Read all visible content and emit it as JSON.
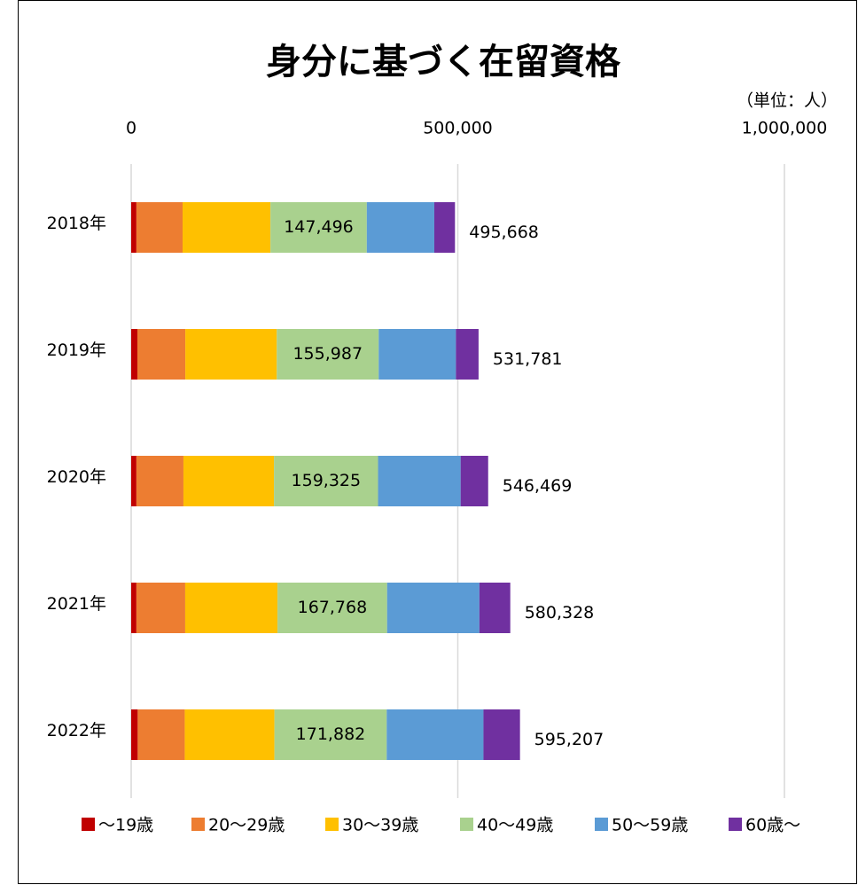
{
  "chart_data": {
    "type": "stacked-barh",
    "title": "身分に基づく在留資格",
    "unit_label": "（単位：人）",
    "categories": [
      "2018年",
      "2019年",
      "2020年",
      "2021年",
      "2022年"
    ],
    "series": [
      {
        "name": "～19歳",
        "color": "#c00000",
        "values": [
          8000,
          9500,
          8000,
          8000,
          10000
        ]
      },
      {
        "name": "20～29歳",
        "color": "#ed7d31",
        "values": [
          70700,
          73400,
          72000,
          74700,
          72000
        ]
      },
      {
        "name": "30～39歳",
        "color": "#ffc000",
        "values": [
          134500,
          140000,
          138600,
          141300,
          137300
        ]
      },
      {
        "name": "40～49歳",
        "color": "#a9d18e",
        "values": [
          147496,
          155987,
          159325,
          167768,
          171882
        ],
        "value_labels": [
          "147,496",
          "155,987",
          "159,325",
          "167,768",
          "171,882"
        ]
      },
      {
        "name": "50～59歳",
        "color": "#5b9bd5",
        "values": [
          103300,
          118200,
          126400,
          141300,
          148100
        ]
      },
      {
        "name": "60歳～",
        "color": "#7030a0",
        "values": [
          31672,
          34694,
          42144,
          47260,
          55925
        ]
      }
    ],
    "totals": [
      495668,
      531781,
      546469,
      580328,
      595207
    ],
    "total_labels": [
      "495,668",
      "531,781",
      "546,469",
      "580,328",
      "595,207"
    ],
    "xlim": [
      0,
      1000000
    ],
    "xticks": [
      0,
      {
        "value": 500000,
        "label": "500,000"
      },
      {
        "value": 1000000,
        "label": "1,000,000"
      }
    ],
    "grid": true,
    "legend": "bottom"
  }
}
